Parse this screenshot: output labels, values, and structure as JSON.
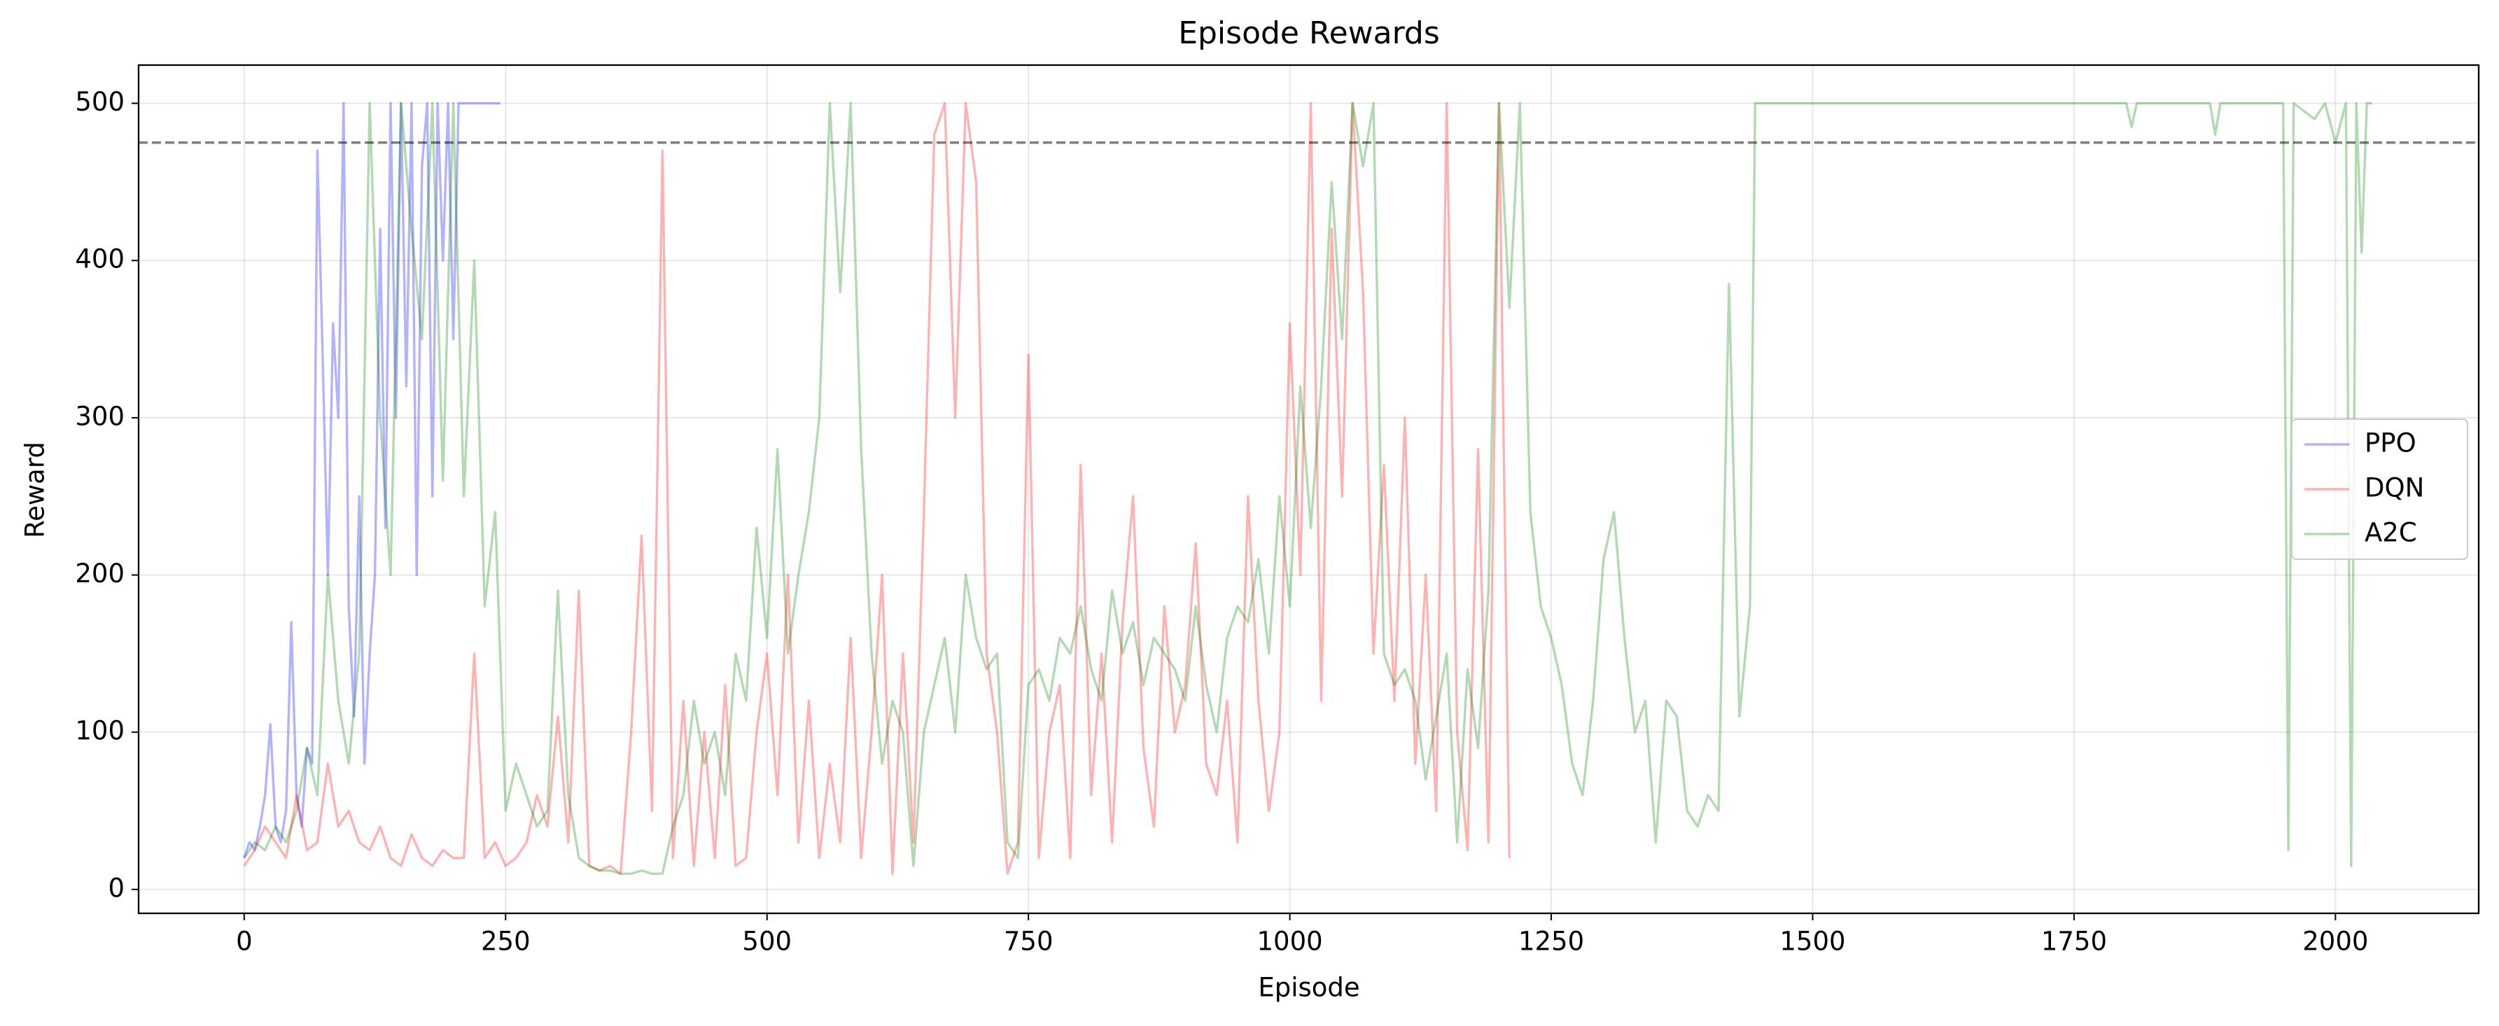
{
  "chart_data": {
    "type": "line",
    "title": "Episode Rewards",
    "x_label": "Episode",
    "y_label": "Reward",
    "xlim": [
      -101,
      2137
    ],
    "ylim": [
      -15.2,
      524.3
    ],
    "xticks": [
      0,
      250,
      500,
      750,
      1000,
      1250,
      1500,
      1750,
      2000
    ],
    "yticks": [
      0,
      100,
      200,
      300,
      400,
      500
    ],
    "grid": true,
    "legend": "center right",
    "hline": 475,
    "hline_color": "#000000",
    "series": [
      {
        "name": "PPO",
        "color": "#0000ff",
        "x": [
          0,
          5,
          10,
          15,
          20,
          25,
          30,
          35,
          40,
          45,
          50,
          55,
          60,
          65,
          70,
          75,
          80,
          85,
          90,
          95,
          100,
          105,
          110,
          115,
          120,
          125,
          130,
          135,
          140,
          145,
          150,
          155,
          160,
          165,
          170,
          175,
          180,
          185,
          190,
          195,
          200,
          205,
          210,
          215,
          220,
          225,
          230,
          235,
          240,
          245
        ],
        "values": [
          20,
          30,
          25,
          40,
          60,
          105,
          40,
          30,
          50,
          170,
          60,
          40,
          90,
          80,
          470,
          340,
          200,
          360,
          300,
          500,
          180,
          110,
          250,
          80,
          150,
          200,
          420,
          230,
          500,
          300,
          500,
          320,
          500,
          200,
          460,
          500,
          250,
          500,
          400,
          500,
          350,
          500,
          500,
          500,
          500,
          500,
          500,
          500,
          500,
          500
        ]
      },
      {
        "name": "DQN",
        "color": "#ff0000",
        "x": [
          0,
          10,
          20,
          30,
          40,
          50,
          60,
          70,
          80,
          90,
          100,
          110,
          120,
          130,
          140,
          150,
          160,
          170,
          180,
          190,
          200,
          210,
          220,
          230,
          240,
          250,
          260,
          270,
          280,
          290,
          300,
          310,
          320,
          330,
          340,
          350,
          360,
          370,
          380,
          390,
          400,
          410,
          420,
          430,
          440,
          450,
          460,
          470,
          480,
          490,
          500,
          510,
          520,
          530,
          540,
          550,
          560,
          570,
          580,
          590,
          600,
          610,
          620,
          630,
          640,
          650,
          660,
          670,
          680,
          690,
          700,
          710,
          720,
          730,
          740,
          750,
          760,
          770,
          780,
          790,
          800,
          810,
          820,
          830,
          840,
          850,
          860,
          870,
          880,
          890,
          900,
          910,
          920,
          930,
          940,
          950,
          960,
          970,
          980,
          990,
          1000,
          1010,
          1020,
          1030,
          1040,
          1050,
          1060,
          1070,
          1080,
          1090,
          1100,
          1110,
          1120,
          1130,
          1140,
          1150,
          1160,
          1170,
          1180,
          1190,
          1200,
          1210
        ],
        "values": [
          15,
          25,
          40,
          30,
          20,
          60,
          25,
          30,
          80,
          40,
          50,
          30,
          25,
          40,
          20,
          15,
          35,
          20,
          15,
          25,
          20,
          20,
          150,
          20,
          30,
          15,
          20,
          30,
          60,
          40,
          110,
          30,
          190,
          15,
          12,
          15,
          10,
          100,
          225,
          50,
          470,
          20,
          120,
          15,
          100,
          20,
          130,
          15,
          20,
          100,
          150,
          60,
          200,
          30,
          120,
          20,
          80,
          30,
          160,
          20,
          100,
          200,
          10,
          150,
          30,
          240,
          480,
          500,
          300,
          500,
          450,
          150,
          100,
          10,
          30,
          340,
          20,
          100,
          130,
          20,
          270,
          60,
          150,
          30,
          170,
          250,
          90,
          40,
          180,
          100,
          130,
          220,
          80,
          60,
          120,
          30,
          250,
          120,
          50,
          100,
          360,
          200,
          500,
          120,
          420,
          250,
          500,
          380,
          150,
          270,
          120,
          300,
          80,
          200,
          50,
          500,
          100,
          25,
          280,
          30,
          500,
          20
        ]
      },
      {
        "name": "A2C",
        "color": "#008000",
        "x": [
          0,
          10,
          20,
          30,
          40,
          50,
          60,
          70,
          80,
          90,
          100,
          110,
          120,
          130,
          140,
          150,
          160,
          170,
          180,
          190,
          200,
          210,
          220,
          230,
          240,
          250,
          260,
          270,
          280,
          290,
          300,
          310,
          320,
          330,
          340,
          350,
          360,
          370,
          380,
          390,
          400,
          410,
          420,
          430,
          440,
          450,
          460,
          470,
          480,
          490,
          500,
          510,
          520,
          530,
          540,
          550,
          560,
          570,
          580,
          590,
          600,
          610,
          620,
          630,
          640,
          650,
          660,
          670,
          680,
          690,
          700,
          710,
          720,
          730,
          740,
          750,
          760,
          770,
          780,
          790,
          800,
          810,
          820,
          830,
          840,
          850,
          860,
          870,
          880,
          890,
          900,
          910,
          920,
          930,
          940,
          950,
          960,
          970,
          980,
          990,
          1000,
          1010,
          1020,
          1030,
          1040,
          1050,
          1060,
          1070,
          1080,
          1090,
          1100,
          1110,
          1120,
          1130,
          1140,
          1150,
          1160,
          1170,
          1180,
          1190,
          1200,
          1210,
          1220,
          1230,
          1240,
          1250,
          1260,
          1270,
          1280,
          1290,
          1300,
          1310,
          1320,
          1330,
          1340,
          1350,
          1360,
          1370,
          1380,
          1390,
          1400,
          1410,
          1420,
          1430,
          1440,
          1445,
          1800,
          1805,
          1810,
          1880,
          1885,
          1890,
          1950,
          1955,
          1960,
          1980,
          1990,
          2000,
          2010,
          2015,
          2020,
          2025,
          2030,
          2035
        ],
        "values": [
          20,
          30,
          25,
          40,
          30,
          50,
          90,
          60,
          200,
          120,
          80,
          150,
          500,
          300,
          200,
          500,
          420,
          350,
          500,
          260,
          500,
          250,
          400,
          180,
          240,
          50,
          80,
          60,
          40,
          50,
          190,
          60,
          20,
          15,
          12,
          12,
          10,
          10,
          12,
          10,
          10,
          40,
          60,
          120,
          80,
          100,
          60,
          150,
          120,
          230,
          160,
          280,
          150,
          200,
          240,
          300,
          500,
          380,
          500,
          280,
          150,
          80,
          120,
          100,
          15,
          100,
          130,
          160,
          100,
          200,
          160,
          140,
          150,
          30,
          20,
          130,
          140,
          120,
          160,
          150,
          180,
          140,
          120,
          190,
          150,
          170,
          130,
          160,
          150,
          140,
          120,
          180,
          130,
          100,
          160,
          180,
          170,
          210,
          150,
          250,
          180,
          320,
          230,
          320,
          450,
          350,
          500,
          460,
          500,
          150,
          130,
          140,
          120,
          70,
          110,
          150,
          30,
          140,
          90,
          190,
          500,
          370,
          500,
          240,
          180,
          160,
          130,
          80,
          60,
          120,
          210,
          240,
          160,
          100,
          120,
          30,
          120,
          110,
          50,
          40,
          60,
          50,
          385,
          110,
          180,
          500,
          500,
          485,
          500,
          500,
          480,
          500,
          500,
          25,
          500,
          490,
          500,
          475,
          500,
          15,
          500,
          405,
          500,
          500
        ]
      }
    ]
  }
}
